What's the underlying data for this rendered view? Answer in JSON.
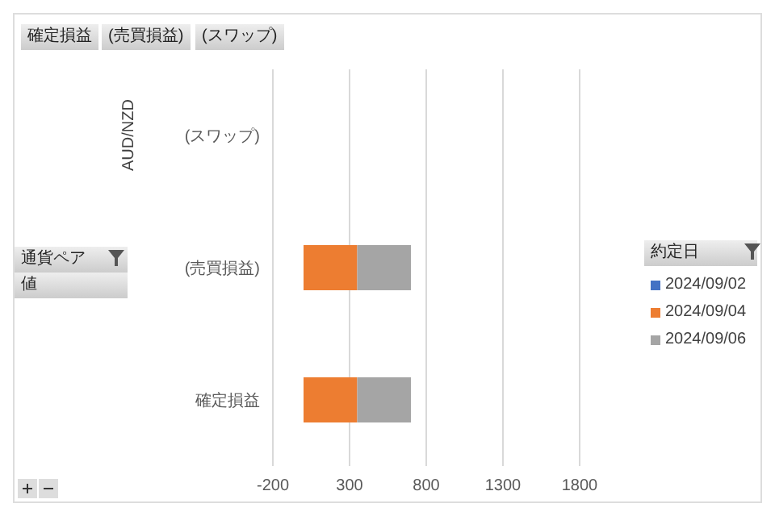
{
  "chart_data": {
    "type": "bar",
    "orientation": "horizontal",
    "stacked": true,
    "categories": [
      "(スワップ)",
      "(売買損益)",
      "確定損益"
    ],
    "ylabel": "AUD/NZD",
    "legend_title": "約定日",
    "series": [
      {
        "name": "2024/09/02",
        "color": "#4472c4",
        "values": [
          0,
          0,
          0
        ]
      },
      {
        "name": "2024/09/04",
        "color": "#ed7d31",
        "values": [
          0,
          350,
          350
        ]
      },
      {
        "name": "2024/09/06",
        "color": "#a5a5a5",
        "values": [
          0,
          350,
          350
        ]
      }
    ],
    "xlim": [
      -200,
      1800
    ],
    "xticks": [
      -200,
      300,
      800,
      1300,
      1800
    ],
    "grid": "x",
    "legend": "right",
    "annotations": [
      "確定損益",
      "(売買損益)",
      "(スワップ)",
      "通貨ペア",
      "値"
    ]
  }
}
